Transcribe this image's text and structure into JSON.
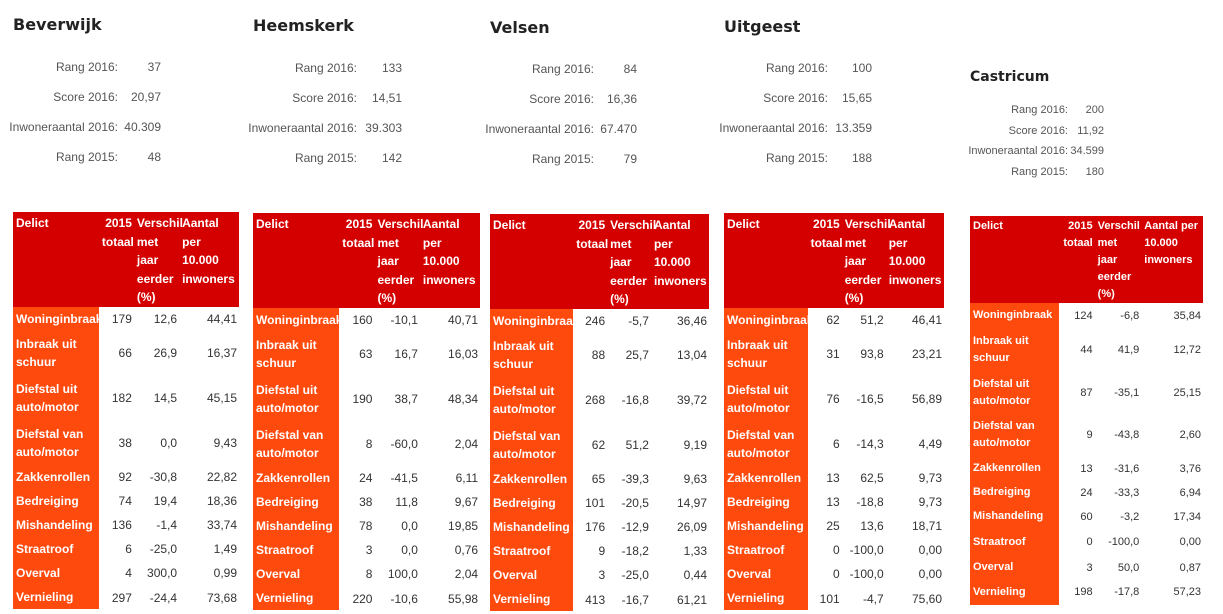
{
  "stat_labels": {
    "rank2016": "Rang 2016:",
    "score2016": "Score 2016:",
    "population2016": "Inwoneraantal 2016:",
    "rank2015": "Rang 2015:"
  },
  "table_headers": {
    "delict": "Delict",
    "total_2015": "2015 totaal",
    "change": "Verschil met jaar eerder (%)",
    "per_10000": "Aantal per 10.000 inwoners"
  },
  "municipalities": [
    {
      "name": "Beverwijk",
      "rank2016": "37",
      "score2016": "20,97",
      "population2016": "40.309",
      "rank2015": "48",
      "rows": [
        {
          "delict": "Woninginbraak",
          "total": "179",
          "change": "12,6",
          "per10k": "44,41"
        },
        {
          "delict": "Inbraak uit schuur",
          "total": "66",
          "change": "26,9",
          "per10k": "16,37"
        },
        {
          "delict": "Diefstal uit auto/motor",
          "total": "182",
          "change": "14,5",
          "per10k": "45,15"
        },
        {
          "delict": "Diefstal van auto/motor",
          "total": "38",
          "change": "0,0",
          "per10k": "9,43"
        },
        {
          "delict": "Zakkenrollen",
          "total": "92",
          "change": "-30,8",
          "per10k": "22,82"
        },
        {
          "delict": "Bedreiging",
          "total": "74",
          "change": "19,4",
          "per10k": "18,36"
        },
        {
          "delict": "Mishandeling",
          "total": "136",
          "change": "-1,4",
          "per10k": "33,74"
        },
        {
          "delict": "Straatroof",
          "total": "6",
          "change": "-25,0",
          "per10k": "1,49"
        },
        {
          "delict": "Overval",
          "total": "4",
          "change": "300,0",
          "per10k": "0,99"
        },
        {
          "delict": "Vernieling",
          "total": "297",
          "change": "-24,4",
          "per10k": "73,68"
        }
      ]
    },
    {
      "name": "Heemskerk",
      "rank2016": "133",
      "score2016": "14,51",
      "population2016": "39.303",
      "rank2015": "142",
      "rows": [
        {
          "delict": "Woninginbraak",
          "total": "160",
          "change": "-10,1",
          "per10k": "40,71"
        },
        {
          "delict": "Inbraak uit schuur",
          "total": "63",
          "change": "16,7",
          "per10k": "16,03"
        },
        {
          "delict": "Diefstal uit auto/motor",
          "total": "190",
          "change": "38,7",
          "per10k": "48,34"
        },
        {
          "delict": "Diefstal van auto/motor",
          "total": "8",
          "change": "-60,0",
          "per10k": "2,04"
        },
        {
          "delict": "Zakkenrollen",
          "total": "24",
          "change": "-41,5",
          "per10k": "6,11"
        },
        {
          "delict": "Bedreiging",
          "total": "38",
          "change": "11,8",
          "per10k": "9,67"
        },
        {
          "delict": "Mishandeling",
          "total": "78",
          "change": "0,0",
          "per10k": "19,85"
        },
        {
          "delict": "Straatroof",
          "total": "3",
          "change": "0,0",
          "per10k": "0,76"
        },
        {
          "delict": "Overval",
          "total": "8",
          "change": "100,0",
          "per10k": "2,04"
        },
        {
          "delict": "Vernieling",
          "total": "220",
          "change": "-10,6",
          "per10k": "55,98"
        }
      ]
    },
    {
      "name": "Velsen",
      "rank2016": "84",
      "score2016": "16,36",
      "population2016": "67.470",
      "rank2015": "79",
      "rows": [
        {
          "delict": "Woninginbraak",
          "total": "246",
          "change": "-5,7",
          "per10k": "36,46"
        },
        {
          "delict": "Inbraak uit schuur",
          "total": "88",
          "change": "25,7",
          "per10k": "13,04"
        },
        {
          "delict": "Diefstal uit auto/motor",
          "total": "268",
          "change": "-16,8",
          "per10k": "39,72"
        },
        {
          "delict": "Diefstal van auto/motor",
          "total": "62",
          "change": "51,2",
          "per10k": "9,19"
        },
        {
          "delict": "Zakkenrollen",
          "total": "65",
          "change": "-39,3",
          "per10k": "9,63"
        },
        {
          "delict": "Bedreiging",
          "total": "101",
          "change": "-20,5",
          "per10k": "14,97"
        },
        {
          "delict": "Mishandeling",
          "total": "176",
          "change": "-12,9",
          "per10k": "26,09"
        },
        {
          "delict": "Straatroof",
          "total": "9",
          "change": "-18,2",
          "per10k": "1,33"
        },
        {
          "delict": "Overval",
          "total": "3",
          "change": "-25,0",
          "per10k": "0,44"
        },
        {
          "delict": "Vernieling",
          "total": "413",
          "change": "-16,7",
          "per10k": "61,21"
        }
      ]
    },
    {
      "name": "Uitgeest",
      "rank2016": "100",
      "score2016": "15,65",
      "population2016": "13.359",
      "rank2015": "188",
      "rows": [
        {
          "delict": "Woninginbraak",
          "total": "62",
          "change": "51,2",
          "per10k": "46,41"
        },
        {
          "delict": "Inbraak uit schuur",
          "total": "31",
          "change": "93,8",
          "per10k": "23,21"
        },
        {
          "delict": "Diefstal uit auto/motor",
          "total": "76",
          "change": "-16,5",
          "per10k": "56,89"
        },
        {
          "delict": "Diefstal van auto/motor",
          "total": "6",
          "change": "-14,3",
          "per10k": "4,49"
        },
        {
          "delict": "Zakkenrollen",
          "total": "13",
          "change": "62,5",
          "per10k": "9,73"
        },
        {
          "delict": "Bedreiging",
          "total": "13",
          "change": "-18,8",
          "per10k": "9,73"
        },
        {
          "delict": "Mishandeling",
          "total": "25",
          "change": "13,6",
          "per10k": "18,71"
        },
        {
          "delict": "Straatroof",
          "total": "0",
          "change": "-100,0",
          "per10k": "0,00"
        },
        {
          "delict": "Overval",
          "total": "0",
          "change": "-100,0",
          "per10k": "0,00"
        },
        {
          "delict": "Vernieling",
          "total": "101",
          "change": "-4,7",
          "per10k": "75,60"
        }
      ]
    },
    {
      "name": "Castricum",
      "rank2016": "200",
      "score2016": "11,92",
      "population2016": "34.599",
      "rank2015": "180",
      "rows": [
        {
          "delict": "Woninginbraak",
          "total": "124",
          "change": "-6,8",
          "per10k": "35,84"
        },
        {
          "delict": "Inbraak uit schuur",
          "total": "44",
          "change": "41,9",
          "per10k": "12,72"
        },
        {
          "delict": "Diefstal uit auto/motor",
          "total": "87",
          "change": "-35,1",
          "per10k": "25,15"
        },
        {
          "delict": "Diefstal van auto/motor",
          "total": "9",
          "change": "-43,8",
          "per10k": "2,60"
        },
        {
          "delict": "Zakkenrollen",
          "total": "13",
          "change": "-31,6",
          "per10k": "3,76"
        },
        {
          "delict": "Bedreiging",
          "total": "24",
          "change": "-33,3",
          "per10k": "6,94"
        },
        {
          "delict": "Mishandeling",
          "total": "60",
          "change": "-3,2",
          "per10k": "17,34"
        },
        {
          "delict": "Straatroof",
          "total": "0",
          "change": "-100,0",
          "per10k": "0,00"
        },
        {
          "delict": "Overval",
          "total": "3",
          "change": "50,0",
          "per10k": "0,87"
        },
        {
          "delict": "Vernieling",
          "total": "198",
          "change": "-17,8",
          "per10k": "57,23"
        }
      ]
    }
  ],
  "colors": {
    "header_red": "#d40000",
    "row_orange": "#ff4a0e"
  }
}
